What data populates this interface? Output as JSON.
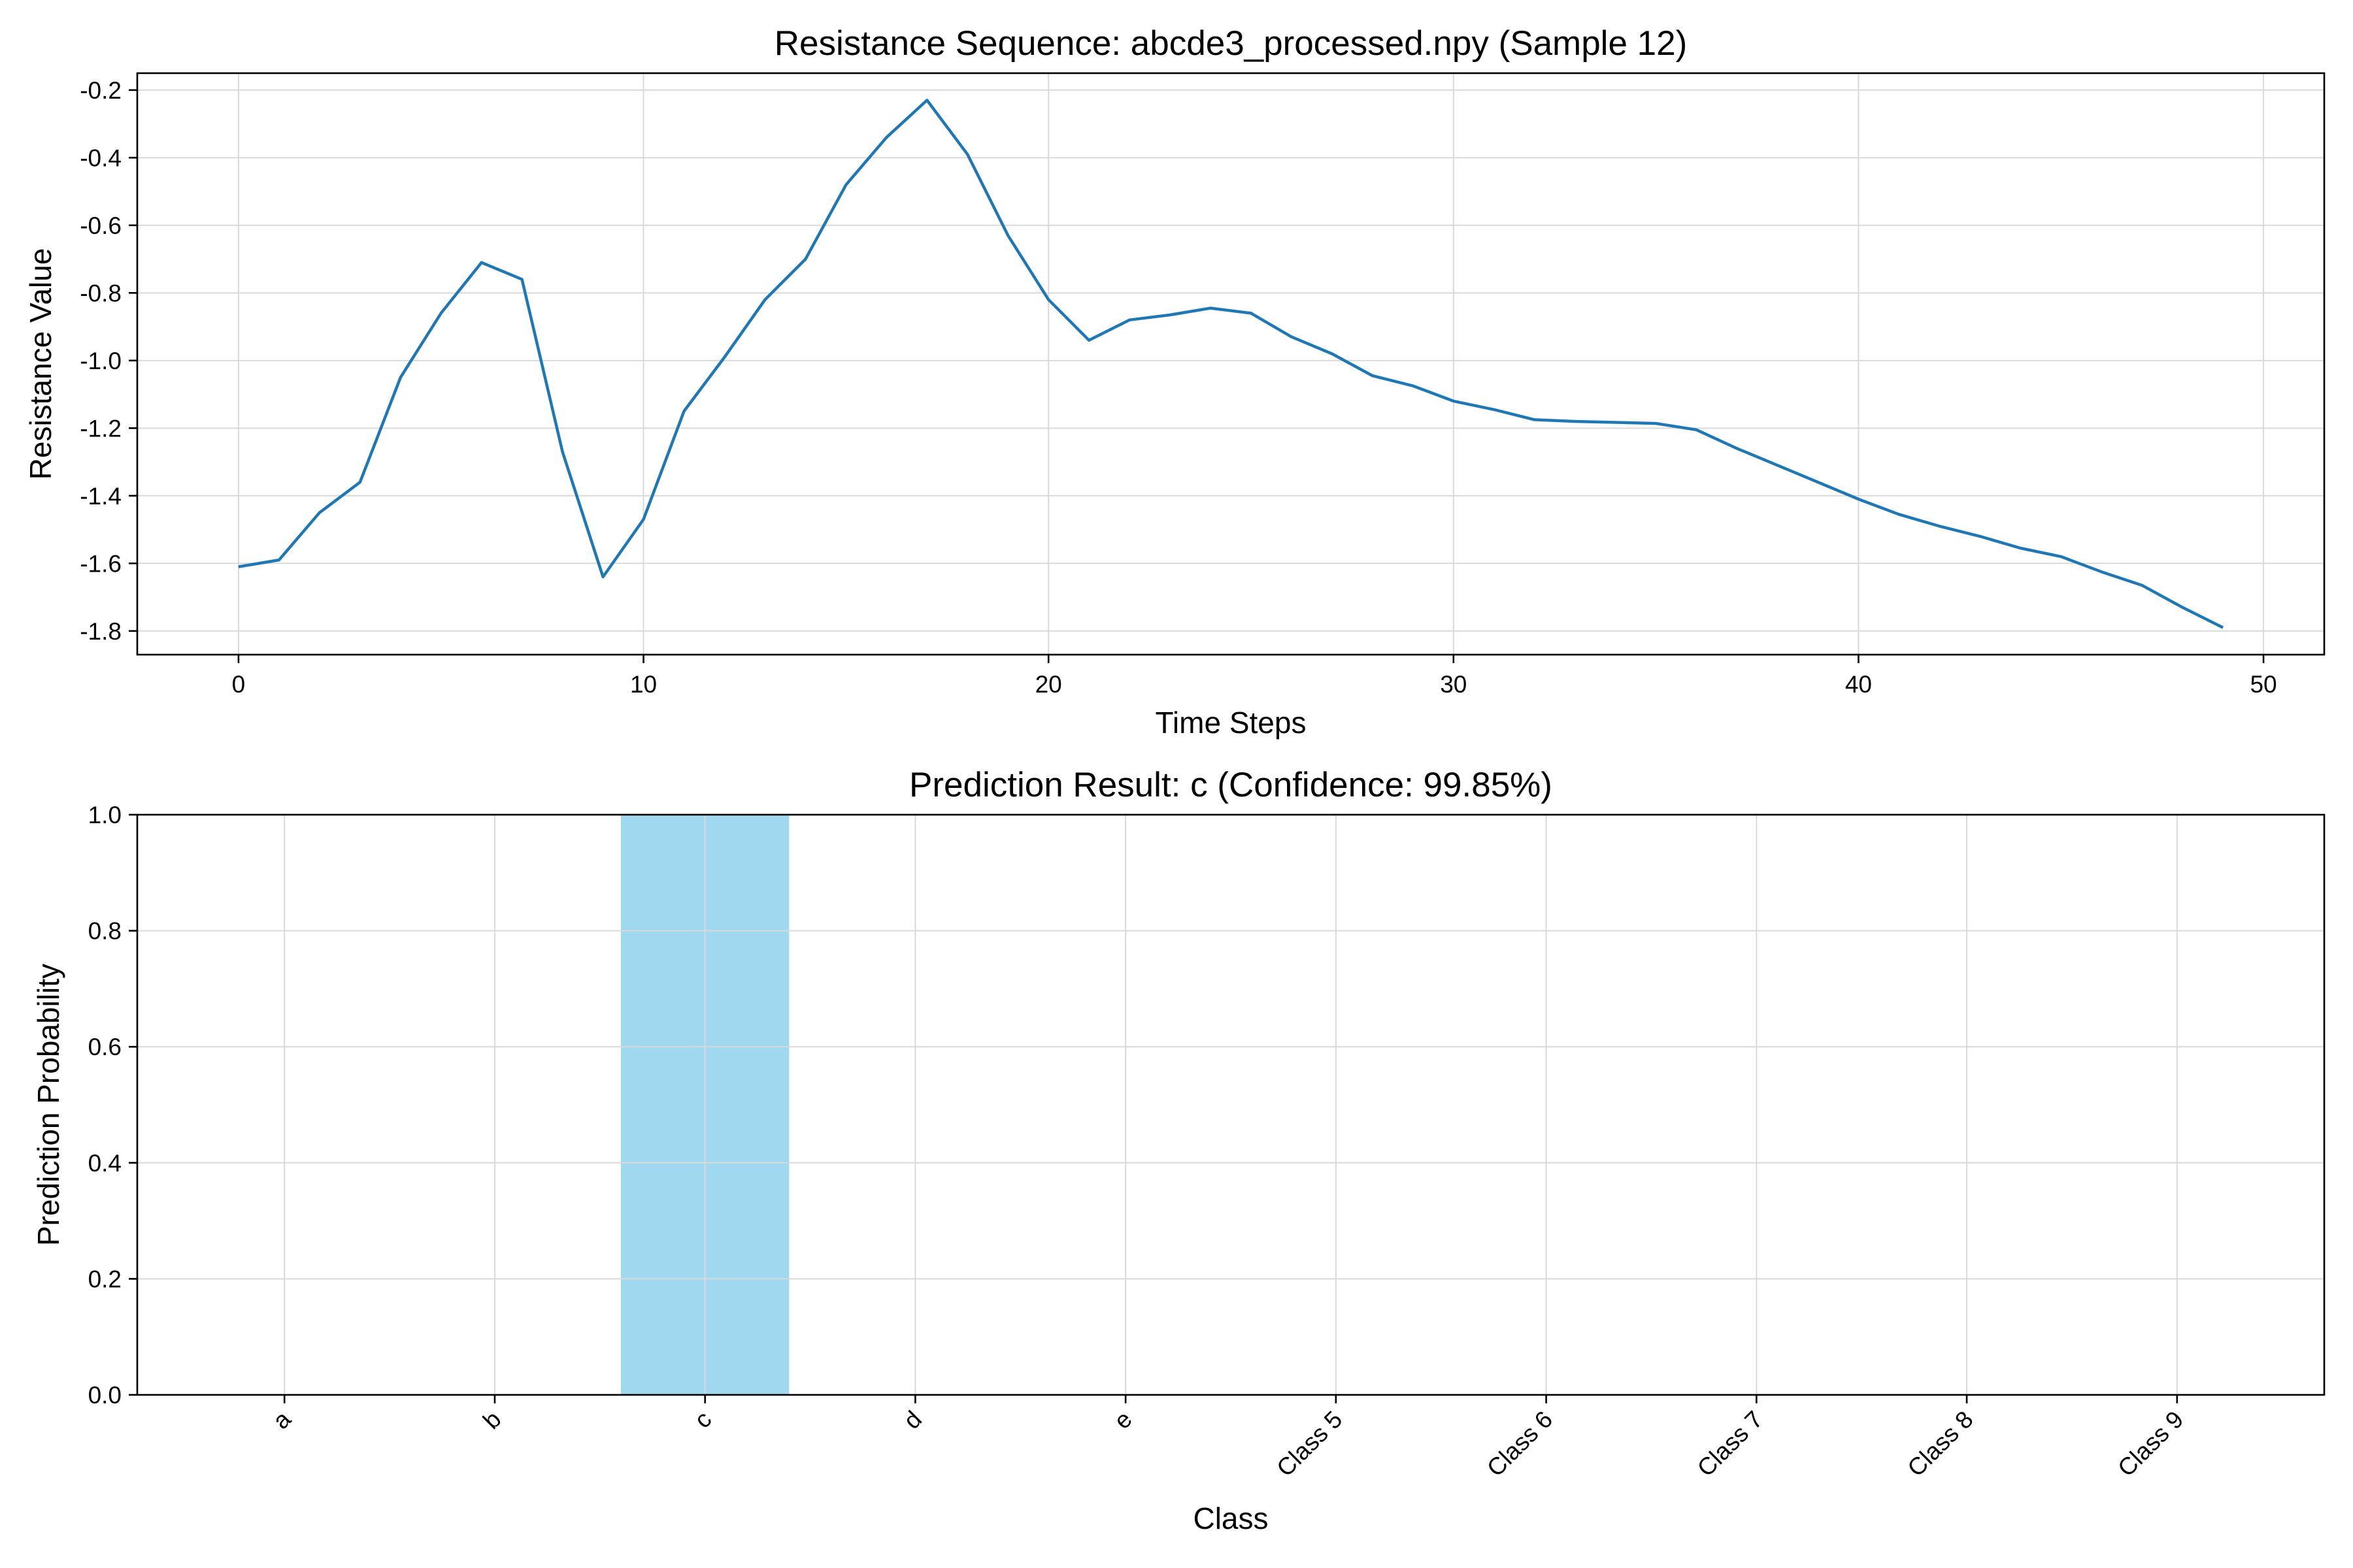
{
  "chart_data": [
    {
      "type": "line",
      "title": "Resistance Sequence: abcde3_processed.npy (Sample 12)",
      "xlabel": "Time Steps",
      "ylabel": "Resistance Value",
      "xlim": [
        -2.5,
        51.5
      ],
      "ylim": [
        -1.87,
        -0.15
      ],
      "xticks": [
        0,
        10,
        20,
        30,
        40,
        50
      ],
      "yticks": [
        -0.2,
        -0.4,
        -0.6,
        -0.8,
        -1.0,
        -1.2,
        -1.4,
        -1.6,
        -1.8
      ],
      "xtick_labels": [
        "0",
        "10",
        "20",
        "30",
        "40",
        "50"
      ],
      "ytick_labels": [
        "-0.2",
        "-0.4",
        "-0.6",
        "-0.8",
        "-1.0",
        "-1.2",
        "-1.4",
        "-1.6",
        "-1.8"
      ],
      "grid": true,
      "color": "#1f77b4",
      "series": [
        {
          "x": [
            0,
            1,
            2,
            3,
            4,
            5,
            6,
            7,
            8,
            9,
            10,
            11,
            12,
            13,
            14,
            15,
            16,
            17,
            18,
            19,
            20,
            21,
            22,
            23,
            24,
            25,
            26,
            27,
            28,
            29,
            30,
            31,
            32,
            33,
            34,
            35,
            36,
            37,
            38,
            39,
            40,
            41,
            42,
            43,
            44,
            45,
            46,
            47,
            48,
            49
          ],
          "values": [
            -1.61,
            -1.59,
            -1.45,
            -1.36,
            -1.05,
            -0.86,
            -0.71,
            -0.76,
            -1.27,
            -1.64,
            -1.47,
            -1.15,
            -0.99,
            -0.82,
            -0.7,
            -0.48,
            -0.34,
            -0.23,
            -0.39,
            -0.63,
            -0.82,
            -0.94,
            -0.88,
            -0.865,
            -0.845,
            -0.86,
            -0.93,
            -0.98,
            -1.045,
            -1.075,
            -1.12,
            -1.145,
            -1.175,
            -1.18,
            -1.183,
            -1.186,
            -1.205,
            -1.26,
            -1.31,
            -1.36,
            -1.41,
            -1.455,
            -1.49,
            -1.52,
            -1.555,
            -1.58,
            -1.625,
            -1.665,
            -1.73,
            -1.79
          ]
        }
      ]
    },
    {
      "type": "bar",
      "title": "Prediction Result: c (Confidence: 99.85%)",
      "xlabel": "Class",
      "ylabel": "Prediction Probability",
      "categories": [
        "a",
        "b",
        "c",
        "d",
        "e",
        "Class 5",
        "Class 6",
        "Class 7",
        "Class 8",
        "Class 9"
      ],
      "values": [
        0.0003,
        0.0002,
        0.9985,
        0.0004,
        0.0006,
        0,
        0,
        0,
        0,
        0
      ],
      "ylim": [
        0,
        1.0
      ],
      "yticks": [
        0.0,
        0.2,
        0.4,
        0.6,
        0.8,
        1.0
      ],
      "ytick_labels": [
        "0.0",
        "0.2",
        "0.4",
        "0.6",
        "0.8",
        "1.0"
      ],
      "grid": true,
      "bar_color": "#87ceeb"
    }
  ]
}
